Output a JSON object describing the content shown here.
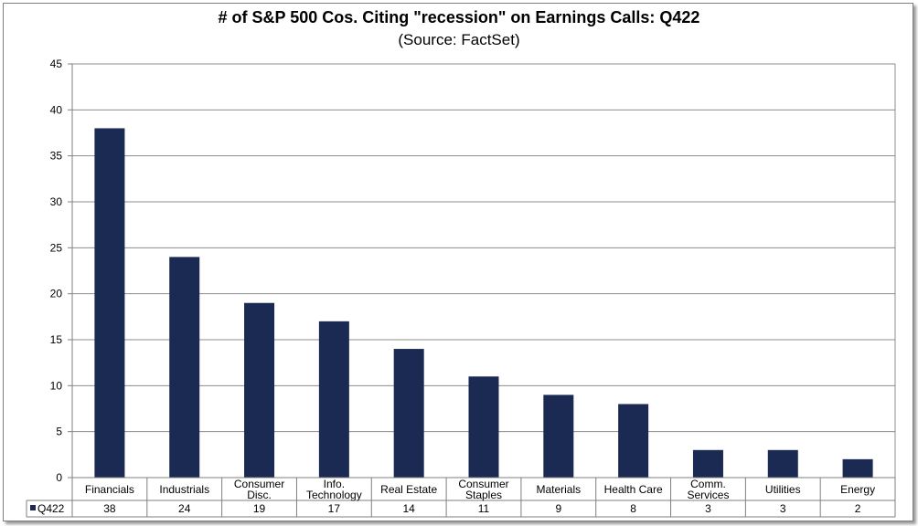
{
  "chart_data": {
    "type": "bar",
    "title": "# of S&P 500 Cos. Citing \"recession\" on Earnings Calls: Q422",
    "subtitle": "(Source: FactSet)",
    "categories": [
      [
        "Financials"
      ],
      [
        "Industrials"
      ],
      [
        "Consumer",
        "Disc."
      ],
      [
        "Info.",
        "Technology"
      ],
      [
        "Real Estate"
      ],
      [
        "Consumer",
        "Staples"
      ],
      [
        "Materials"
      ],
      [
        "Health Care"
      ],
      [
        "Comm.",
        "Services"
      ],
      [
        "Utilities"
      ],
      [
        "Energy"
      ]
    ],
    "series": [
      {
        "name": "Q422",
        "values": [
          38,
          24,
          19,
          17,
          14,
          11,
          9,
          8,
          3,
          3,
          2
        ]
      }
    ],
    "ylim": [
      0,
      45
    ],
    "yticks": [
      0,
      5,
      10,
      15,
      20,
      25,
      30,
      35,
      40,
      45
    ],
    "grid": true,
    "legend": "data-table-left",
    "bar_color": "#1b2a52"
  }
}
